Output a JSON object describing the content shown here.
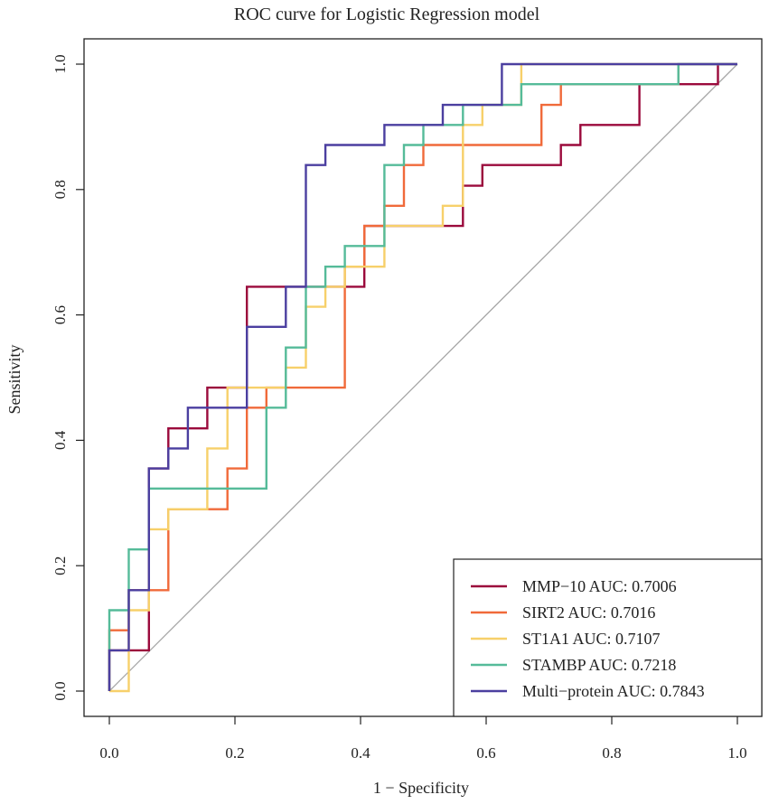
{
  "chart_data": {
    "type": "line",
    "title": "ROC curve for Logistic Regression model",
    "xlabel": "1 − Specificity",
    "ylabel": "Sensitivity",
    "xlim": [
      0,
      1
    ],
    "ylim": [
      0,
      1
    ],
    "xticks": [
      "0.0",
      "0.2",
      "0.4",
      "0.6",
      "0.8",
      "1.0"
    ],
    "yticks": [
      "0.0",
      "0.2",
      "0.4",
      "0.6",
      "0.8",
      "1.0"
    ],
    "legend_position": "bottom-right",
    "series": [
      {
        "name": "MMP−10 AUC: 0.7006",
        "color": "#9b0a3c",
        "x": [
          0,
          0,
          0.031,
          0.031,
          0.063,
          0.063,
          0.094,
          0.094,
          0.156,
          0.156,
          0.188,
          0.188,
          0.219,
          0.219,
          0.375,
          0.375,
          0.406,
          0.406,
          0.438,
          0.438,
          0.5,
          0.5,
          0.531,
          0.531,
          0.563,
          0.563,
          0.594,
          0.594,
          0.719,
          0.719,
          0.75,
          0.75,
          0.844,
          0.844,
          0.969,
          0.969,
          1
        ],
        "y": [
          0,
          0.065,
          0.065,
          0.065,
          0.065,
          0.355,
          0.355,
          0.419,
          0.419,
          0.484,
          0.484,
          0.484,
          0.484,
          0.645,
          0.645,
          0.645,
          0.645,
          0.742,
          0.742,
          0.742,
          0.742,
          0.742,
          0.742,
          0.742,
          0.742,
          0.806,
          0.806,
          0.839,
          0.839,
          0.871,
          0.871,
          0.903,
          0.903,
          0.968,
          0.968,
          1,
          1
        ]
      },
      {
        "name": "SIRT2 AUC: 0.7016",
        "color": "#f06a3a",
        "x": [
          0,
          0,
          0.031,
          0.031,
          0.094,
          0.094,
          0.188,
          0.188,
          0.219,
          0.219,
          0.25,
          0.25,
          0.375,
          0.375,
          0.406,
          0.406,
          0.438,
          0.438,
          0.469,
          0.469,
          0.5,
          0.5,
          0.688,
          0.688,
          0.719,
          0.719,
          0.906,
          0.906,
          1
        ],
        "y": [
          0,
          0.097,
          0.097,
          0.161,
          0.161,
          0.29,
          0.29,
          0.355,
          0.355,
          0.452,
          0.452,
          0.484,
          0.484,
          0.677,
          0.677,
          0.742,
          0.742,
          0.774,
          0.774,
          0.839,
          0.839,
          0.871,
          0.871,
          0.935,
          0.935,
          0.968,
          0.968,
          1,
          1
        ]
      },
      {
        "name": "ST1A1 AUC: 0.7107",
        "color": "#f7d06a",
        "x": [
          0,
          0,
          0.031,
          0.031,
          0.063,
          0.063,
          0.094,
          0.094,
          0.156,
          0.156,
          0.188,
          0.188,
          0.281,
          0.281,
          0.313,
          0.313,
          0.344,
          0.344,
          0.375,
          0.375,
          0.438,
          0.438,
          0.531,
          0.531,
          0.563,
          0.563,
          0.594,
          0.594,
          0.656,
          0.656,
          1
        ],
        "y": [
          0,
          0,
          0,
          0.129,
          0.129,
          0.258,
          0.258,
          0.29,
          0.29,
          0.387,
          0.387,
          0.484,
          0.484,
          0.516,
          0.516,
          0.613,
          0.613,
          0.645,
          0.645,
          0.677,
          0.677,
          0.742,
          0.742,
          0.774,
          0.774,
          0.903,
          0.903,
          0.935,
          0.935,
          1,
          1
        ]
      },
      {
        "name": "STAMBP AUC: 0.7218",
        "color": "#55bb99",
        "x": [
          0,
          0,
          0.031,
          0.031,
          0.063,
          0.063,
          0.25,
          0.25,
          0.281,
          0.281,
          0.313,
          0.313,
          0.344,
          0.344,
          0.375,
          0.375,
          0.438,
          0.438,
          0.469,
          0.469,
          0.5,
          0.5,
          0.531,
          0.531,
          0.563,
          0.563,
          0.625,
          0.625,
          0.656,
          0.656,
          0.906,
          0.906,
          1
        ],
        "y": [
          0,
          0.129,
          0.129,
          0.226,
          0.226,
          0.323,
          0.323,
          0.452,
          0.452,
          0.548,
          0.548,
          0.645,
          0.645,
          0.677,
          0.677,
          0.71,
          0.71,
          0.839,
          0.839,
          0.871,
          0.871,
          0.903,
          0.903,
          0.903,
          0.903,
          0.935,
          0.935,
          0.935,
          0.935,
          0.968,
          0.968,
          1,
          1
        ]
      },
      {
        "name": "Multi−protein AUC: 0.7843",
        "color": "#4b3fa0",
        "x": [
          0,
          0,
          0.031,
          0.031,
          0.063,
          0.063,
          0.094,
          0.094,
          0.125,
          0.125,
          0.219,
          0.219,
          0.281,
          0.281,
          0.313,
          0.313,
          0.344,
          0.344,
          0.438,
          0.438,
          0.531,
          0.531,
          0.625,
          0.625,
          1
        ],
        "y": [
          0,
          0.065,
          0.065,
          0.161,
          0.161,
          0.355,
          0.355,
          0.387,
          0.387,
          0.452,
          0.452,
          0.581,
          0.581,
          0.645,
          0.645,
          0.839,
          0.839,
          0.871,
          0.871,
          0.903,
          0.903,
          0.935,
          0.935,
          1,
          1
        ]
      }
    ]
  }
}
